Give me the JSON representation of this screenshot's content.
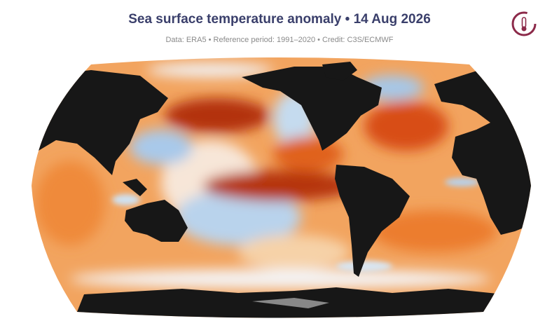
{
  "header": {
    "title": "Sea surface temperature anomaly • 14 Aug 2026",
    "subtitle": "Data: ERA5 • Reference period: 1991–2020 • Credit: C3S/ECMWF"
  }
}
